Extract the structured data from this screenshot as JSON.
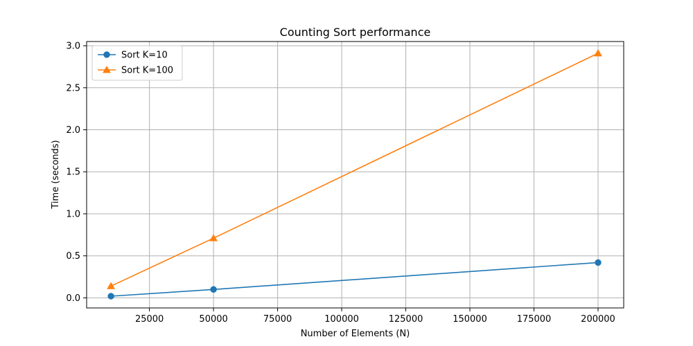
{
  "chart_data": {
    "type": "line",
    "title": "Counting Sort performance",
    "xlabel": "Number of Elements (N)",
    "ylabel": "Time (seconds)",
    "x": [
      10000,
      50000,
      200000
    ],
    "series": [
      {
        "name": "Sort K=10",
        "values": [
          0.02,
          0.1,
          0.42
        ],
        "color": "#1f77b4",
        "marker": "circle"
      },
      {
        "name": "Sort K=100",
        "values": [
          0.14,
          0.71,
          2.91
        ],
        "color": "#ff7f0e",
        "marker": "triangle"
      }
    ],
    "xlim": [
      500,
      210000
    ],
    "ylim": [
      -0.12,
      3.05
    ],
    "xticks": [
      25000,
      50000,
      75000,
      100000,
      125000,
      150000,
      175000,
      200000
    ],
    "xtick_labels": [
      "25000",
      "50000",
      "75000",
      "100000",
      "125000",
      "150000",
      "175000",
      "200000"
    ],
    "yticks": [
      0.0,
      0.5,
      1.0,
      1.5,
      2.0,
      2.5,
      3.0
    ],
    "ytick_labels": [
      "0.0",
      "0.5",
      "1.0",
      "1.5",
      "2.0",
      "2.5",
      "3.0"
    ],
    "grid": true,
    "legend_position": "top-left"
  }
}
